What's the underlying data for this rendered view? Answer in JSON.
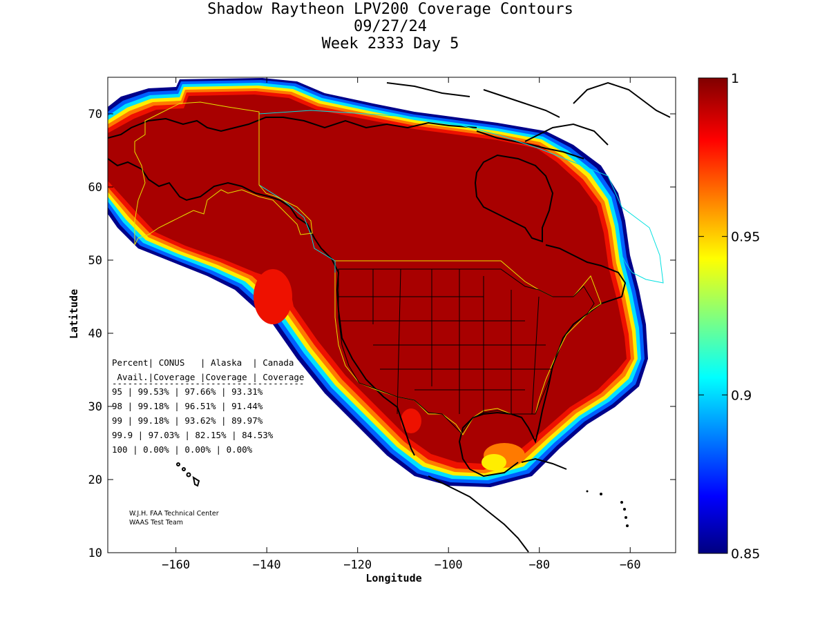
{
  "title": {
    "line1": "Shadow Raytheon LPV200 Coverage Contours",
    "line2": "09/27/24",
    "line3": "Week 2333 Day 5"
  },
  "map": {
    "xlabel": "Longitude",
    "ylabel": "Latitude",
    "lon_range": [
      -175,
      -50
    ],
    "lat_range": [
      10,
      75
    ],
    "xticks": [
      -160,
      -140,
      -120,
      -100,
      -80,
      -60
    ],
    "yticks": [
      10,
      20,
      30,
      40,
      50,
      60,
      70
    ],
    "colors": {
      "fill": "#a80000",
      "border_us": "#e6e600",
      "border_ca": "#00e0e0"
    }
  },
  "colorbar": {
    "ticks": [
      {
        "value": 1.0,
        "label": "1"
      },
      {
        "value": 0.95,
        "label": "0.95"
      },
      {
        "value": 0.9,
        "label": "0.9"
      },
      {
        "value": 0.85,
        "label": "0.85"
      }
    ],
    "range": [
      0.85,
      1.0
    ],
    "colormap": "jet"
  },
  "table": {
    "header1": "Percent| CONUS   | Alaska  | Canada",
    "header2": " Avail.|Coverage |Coverage | Coverage",
    "rule": "-------------------------------------",
    "rows": [
      "  95   | 99.53%  | 97.66% | 93.31%",
      "  98   | 99.18%  | 96.51% | 91.44%",
      "  99   | 99.18%  | 93.62% | 89.97%",
      "99.9   | 97.03%  | 82.15% | 84.53%",
      " 100   | 0.00%  | 0.00% | 0.00%"
    ]
  },
  "credits": {
    "line1": "W.J.H. FAA Technical Center",
    "line2": "WAAS Test Team"
  }
}
